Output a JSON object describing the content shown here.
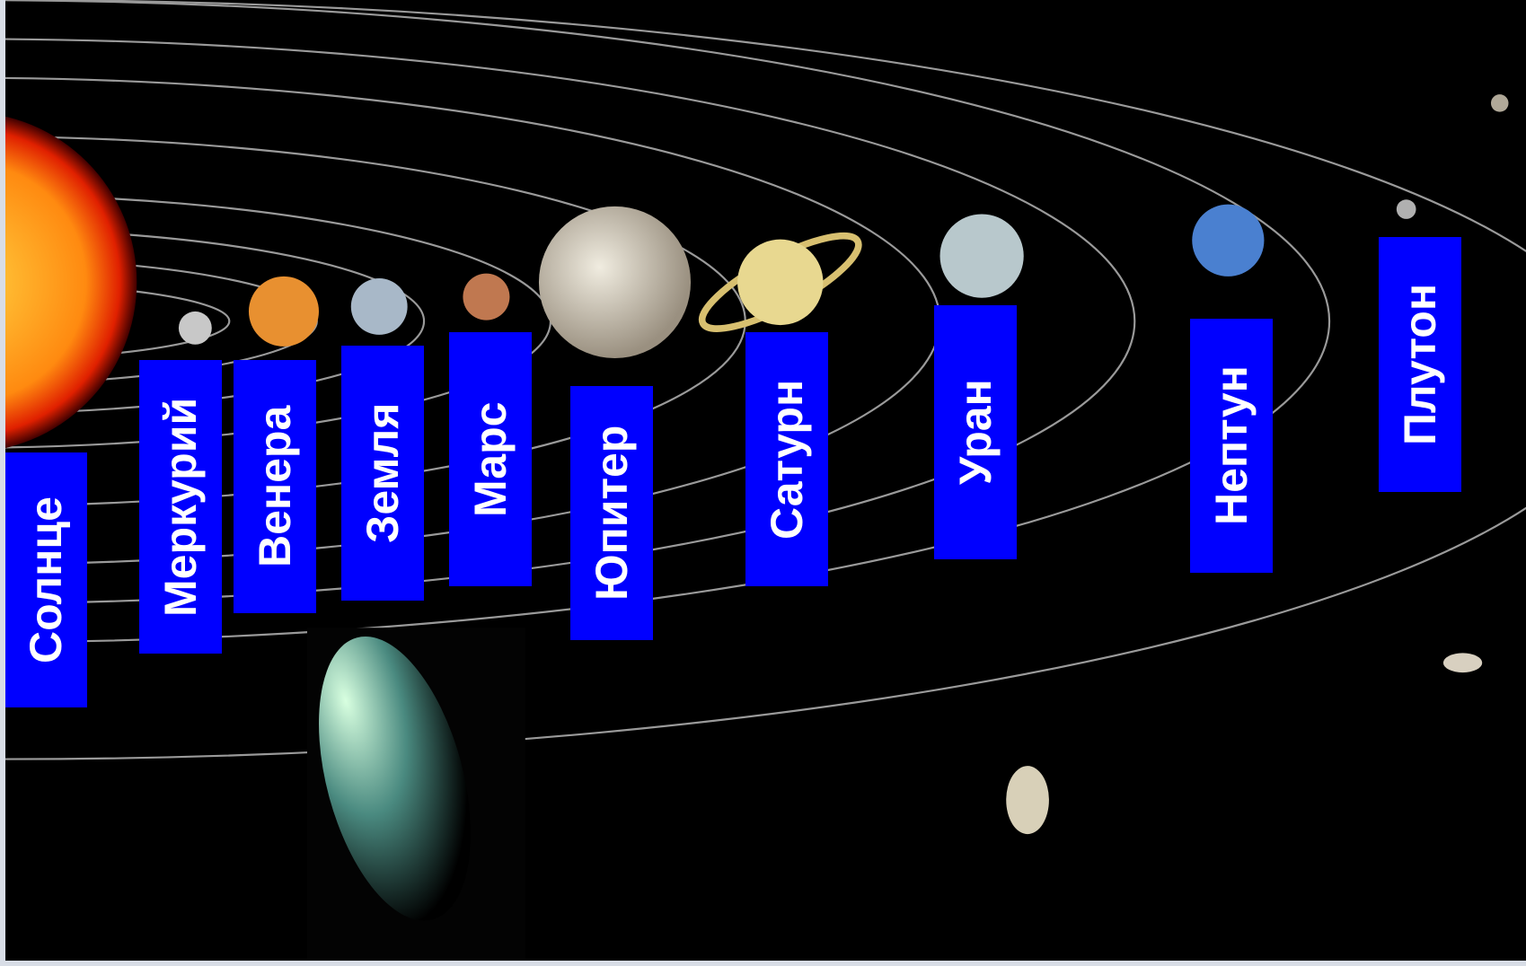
{
  "labels": [
    "Солнце",
    "Меркурий",
    "Венера",
    "Земля",
    "Марс",
    "Юпитер",
    "Сатурн",
    "Уран",
    "Нептун",
    "Плутон"
  ]
}
